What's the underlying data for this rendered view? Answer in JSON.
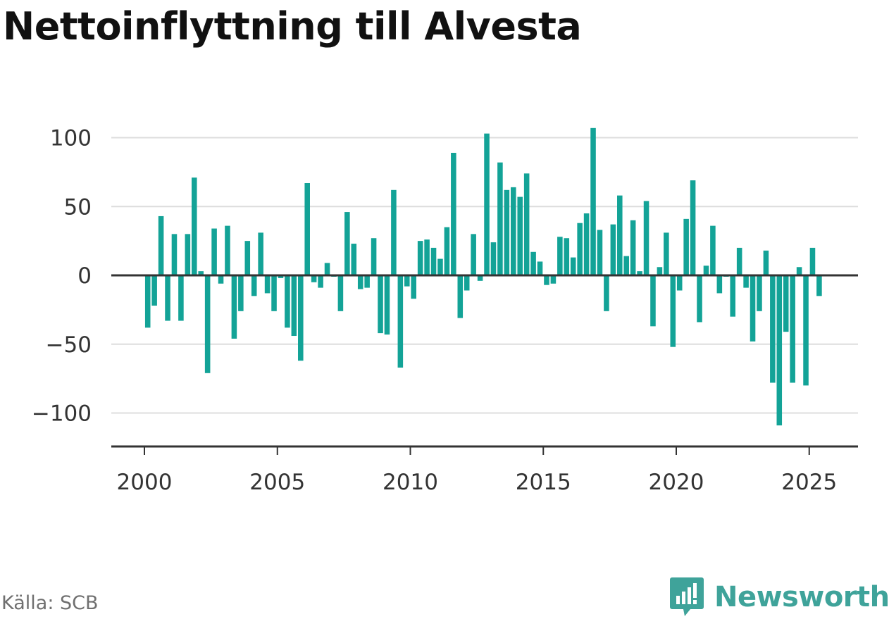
{
  "title": "Nettoinflyttning till Alvesta",
  "source": "Källa: SCB",
  "brand": {
    "name": "Newsworthy",
    "icon": "newsworthy-logo-icon",
    "color": "#3fa39a"
  },
  "colors": {
    "bar": "#13a397",
    "grid": "#dddddd",
    "axis": "#333333",
    "text": "#333333"
  },
  "chart_data": {
    "type": "bar",
    "title": "Nettoinflyttning till Alvesta",
    "xlabel": "",
    "ylabel": "",
    "ylim": [
      -115,
      110
    ],
    "xlim": [
      1999.75,
      2025.75
    ],
    "yticks": [
      100,
      50,
      0,
      -50,
      -100
    ],
    "ytick_labels": [
      "100",
      "50",
      "0",
      "−50",
      "−100"
    ],
    "xticks": [
      2000,
      2005,
      2010,
      2015,
      2020,
      2025
    ],
    "xtick_labels": [
      "2000",
      "2005",
      "2010",
      "2015",
      "2020",
      "2025"
    ],
    "grid": true,
    "legend": "none",
    "start_year": 2000,
    "periods_per_year": 4,
    "values": [
      -38,
      -22,
      43,
      -33,
      30,
      -33,
      30,
      71,
      3,
      -71,
      34,
      -6,
      36,
      -46,
      -26,
      25,
      -15,
      31,
      -13,
      -26,
      -2,
      -38,
      -44,
      -62,
      67,
      -5,
      -9,
      9,
      -1,
      -26,
      46,
      23,
      -10,
      -9,
      27,
      -42,
      -43,
      62,
      -67,
      -8,
      -17,
      25,
      26,
      20,
      12,
      35,
      89,
      -31,
      -11,
      30,
      -4,
      103,
      24,
      82,
      62,
      64,
      57,
      74,
      17,
      10,
      -7,
      -6,
      28,
      27,
      13,
      38,
      45,
      107,
      33,
      -26,
      37,
      58,
      14,
      40,
      3,
      54,
      -37,
      6,
      31,
      -52,
      -11,
      41,
      69,
      -34,
      7,
      36,
      -13,
      -1,
      -30,
      20,
      -9,
      -48,
      -26,
      18,
      -78,
      -109,
      -41,
      -78,
      6,
      -80,
      20,
      -15
    ]
  }
}
